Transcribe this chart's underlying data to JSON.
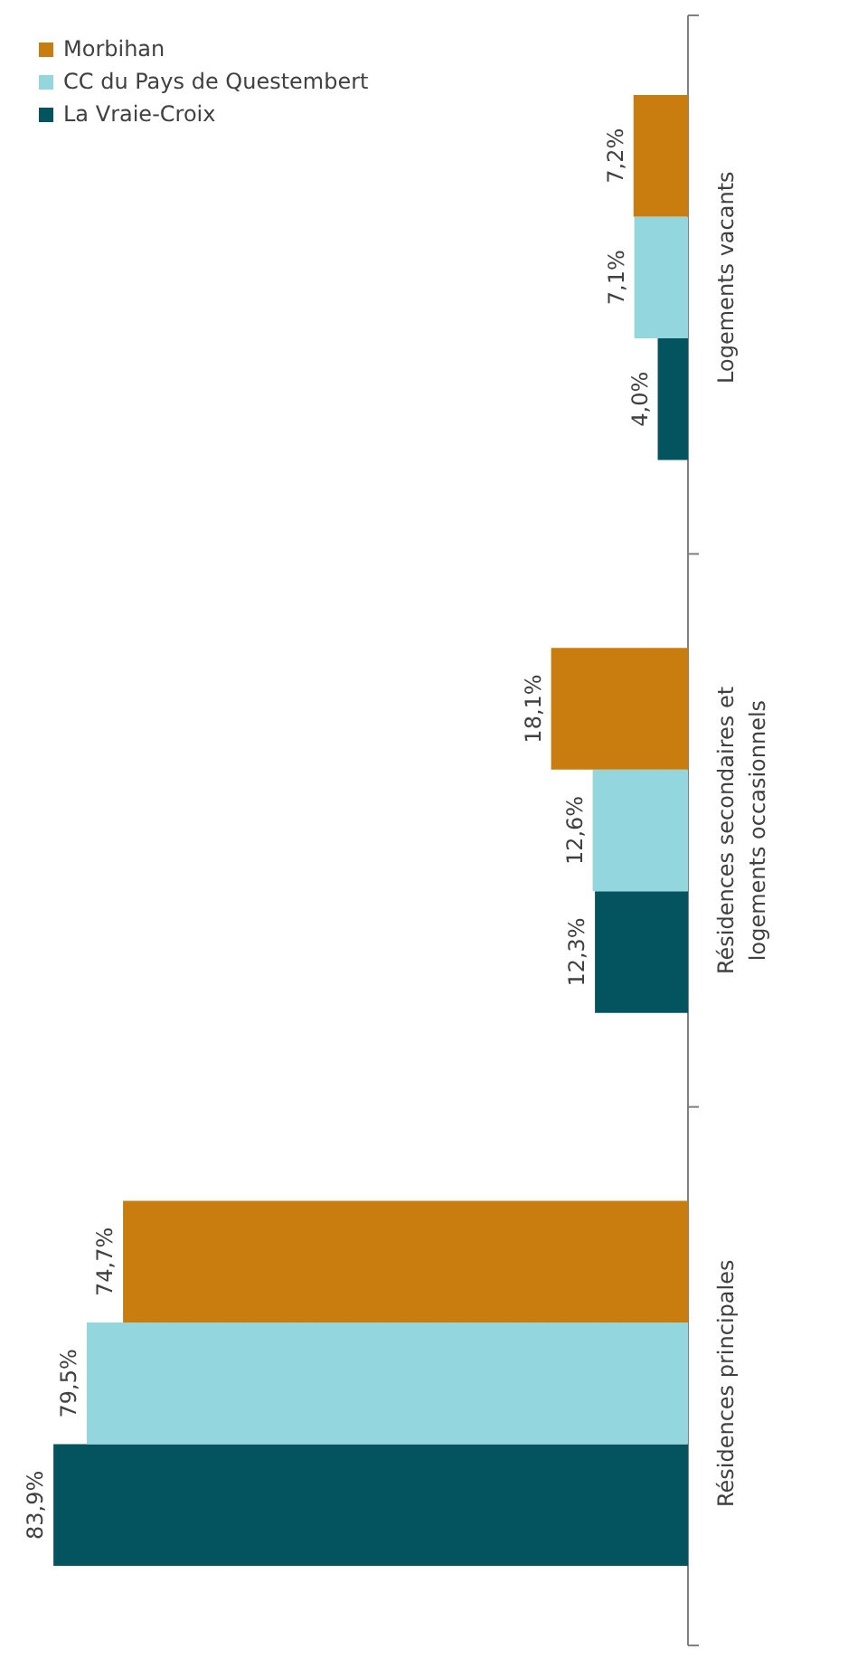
{
  "chart_data": {
    "type": "bar",
    "orientation": "horizontal",
    "categories": [
      "Logements vacants",
      "Résidences secondaires et logements occasionnels",
      "Résidences principales"
    ],
    "series": [
      {
        "name": "La Vraie-Croix",
        "color": "#03545f",
        "values": [
          4.0,
          12.3,
          83.9
        ],
        "value_labels": [
          "4,0%",
          "12,3%",
          "83,9%"
        ]
      },
      {
        "name": "CC du Pays de Questembert",
        "color": "#93d6dd",
        "values": [
          7.1,
          12.6,
          79.5
        ],
        "value_labels": [
          "7,1%",
          "12,6%",
          "79,5%"
        ]
      },
      {
        "name": "Morbihan",
        "color": "#c87d0e",
        "values": [
          7.2,
          18.1,
          74.7
        ],
        "value_labels": [
          "7,2%",
          "18,1%",
          "74,7%"
        ]
      }
    ],
    "legend": "top left",
    "grid": false
  }
}
